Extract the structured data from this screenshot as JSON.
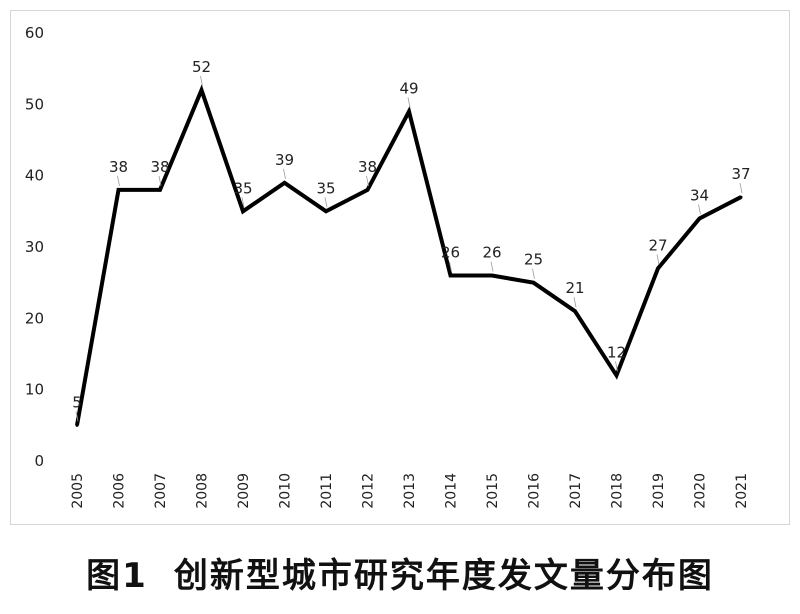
{
  "caption": {
    "figure_number": "图1",
    "title": "创新型城市研究年度发文量分布图"
  },
  "chart_data": {
    "type": "line",
    "title": "",
    "xlabel": "",
    "ylabel": "",
    "categories": [
      "2005",
      "2006",
      "2007",
      "2008",
      "2009",
      "2010",
      "2011",
      "2012",
      "2013",
      "2014",
      "2015",
      "2016",
      "2017",
      "2018",
      "2019",
      "2020",
      "2021"
    ],
    "values": [
      5,
      38,
      38,
      52,
      35,
      39,
      35,
      38,
      49,
      26,
      26,
      25,
      21,
      12,
      27,
      34,
      37
    ],
    "ylim": [
      0,
      60
    ],
    "yticks": [
      "0",
      "10",
      "20",
      "30",
      "40",
      "50",
      "60"
    ],
    "data_labels": [
      "5",
      "38",
      "38",
      "52",
      "35",
      "39",
      "35",
      "38",
      "49",
      "26",
      "26",
      "25",
      "21",
      "12",
      "27",
      "34",
      "37"
    ],
    "grid": false,
    "legend": "none",
    "line_color": "#000000"
  }
}
